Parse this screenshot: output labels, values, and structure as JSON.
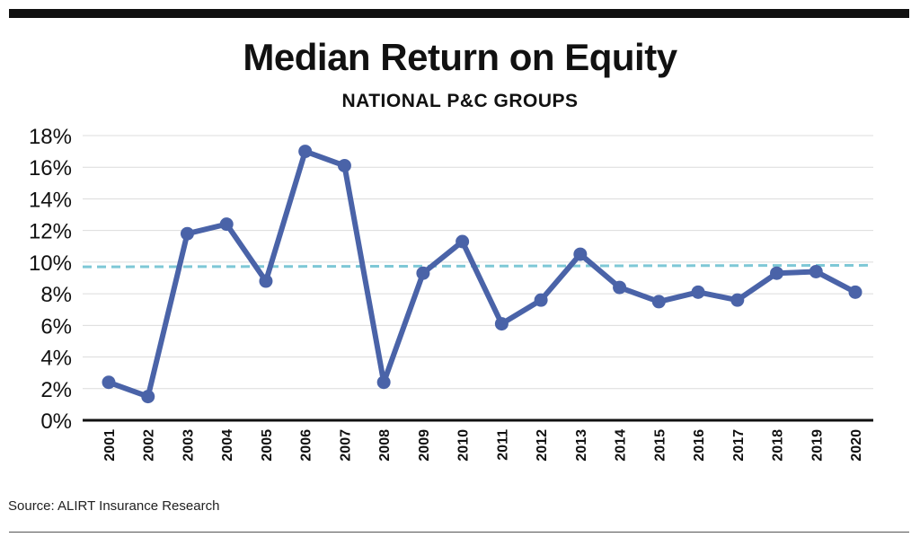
{
  "title": "Median Return on Equity",
  "subtitle": "NATIONAL P&C GROUPS",
  "source": "Source:  ALIRT Insurance Research",
  "colors": {
    "series": "#4a63a8",
    "trend": "#7ec8d6",
    "grid": "#dcdcdc",
    "axis": "#111111",
    "bar": "#111111"
  },
  "chart_data": {
    "type": "line",
    "title": "Median Return on Equity",
    "subtitle": "NATIONAL P&C GROUPS",
    "xlabel": "",
    "ylabel": "",
    "x": [
      "2001",
      "2002",
      "2003",
      "2004",
      "2005",
      "2006",
      "2007",
      "2008",
      "2009",
      "2010",
      "2011",
      "2012",
      "2013",
      "2014",
      "2015",
      "2016",
      "2017",
      "2018",
      "2019",
      "2020"
    ],
    "series": [
      {
        "values": [
          2.4,
          1.5,
          11.8,
          12.4,
          8.8,
          17.0,
          16.1,
          2.4,
          9.3,
          11.3,
          6.1,
          7.6,
          10.5,
          8.4,
          7.5,
          8.1,
          7.6,
          9.3,
          9.4,
          8.1
        ]
      }
    ],
    "trendline": {
      "style": "dashed",
      "start": 9.7,
      "end": 9.8
    },
    "ylim": [
      0,
      18
    ],
    "yticks": [
      0,
      2,
      4,
      6,
      8,
      10,
      12,
      14,
      16,
      18
    ],
    "ytick_labels": [
      "0%",
      "2%",
      "4%",
      "6%",
      "8%",
      "10%",
      "12%",
      "14%",
      "16%",
      "18%"
    ],
    "grid": true,
    "legend": "none"
  }
}
